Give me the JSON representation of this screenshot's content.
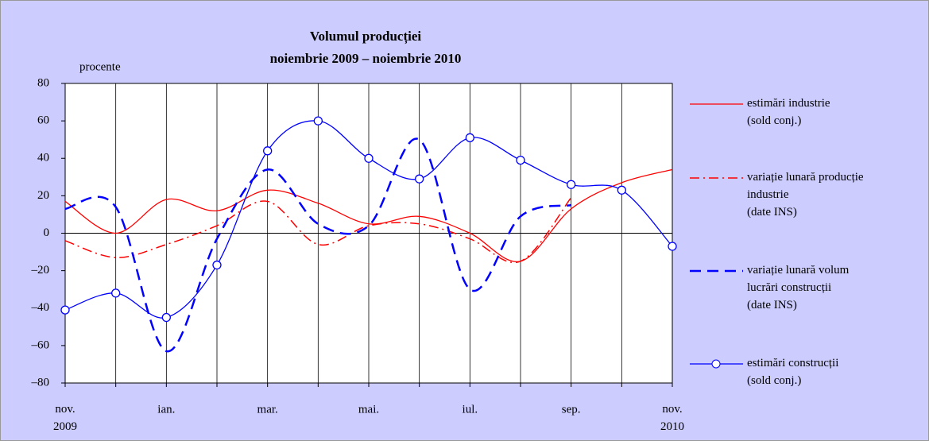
{
  "chart_data": {
    "type": "line",
    "title": "Volumul producției",
    "subtitle": "noiembrie 2009 – noiembrie 2010",
    "y_label": "procente",
    "categories": [
      "nov.\n2009",
      null,
      "ian.",
      null,
      "mar.",
      null,
      "mai.",
      null,
      "iul.",
      null,
      "sep.",
      null,
      "nov.\n2010"
    ],
    "ylim": [
      -80,
      80
    ],
    "yticks": [
      {
        "value": -80,
        "label": "–80"
      },
      {
        "value": -60,
        "label": "–60"
      },
      {
        "value": -40,
        "label": "–40"
      },
      {
        "value": -20,
        "label": "–20"
      },
      0,
      20,
      40,
      60,
      80
    ],
    "legend": "right",
    "series": [
      {
        "name": "estimări industrie\n(sold conj.)",
        "color": "#ff0000",
        "dash": "solid",
        "width": 1.3,
        "values": [
          17,
          0,
          18,
          12,
          23,
          16,
          5,
          9,
          0,
          -15,
          13,
          27,
          34
        ]
      },
      {
        "name": "variație lunară producție\nindustrie\n(date INS)",
        "color": "#ff0000",
        "dash": "dashdot",
        "width": 1.5,
        "values": [
          -4,
          -13,
          -6,
          4,
          17,
          -6,
          4,
          5,
          -3,
          -15,
          19,
          null,
          null
        ]
      },
      {
        "name": "variație lunară volum\nlucrări construcții\n(date INS)",
        "color": "#0000ff",
        "dash": "dashed",
        "width": 2.5,
        "values": [
          13,
          14,
          -63,
          -3,
          34,
          5,
          4,
          50,
          -30,
          9,
          15,
          null,
          null
        ]
      },
      {
        "name": "estimări construcții\n(sold conj.)",
        "color": "#0000ff",
        "dash": "solid",
        "width": 1.3,
        "marker": "circle",
        "values": [
          -41,
          -32,
          -45,
          -17,
          44,
          60,
          40,
          29,
          51,
          39,
          26,
          23,
          -7
        ]
      }
    ]
  }
}
